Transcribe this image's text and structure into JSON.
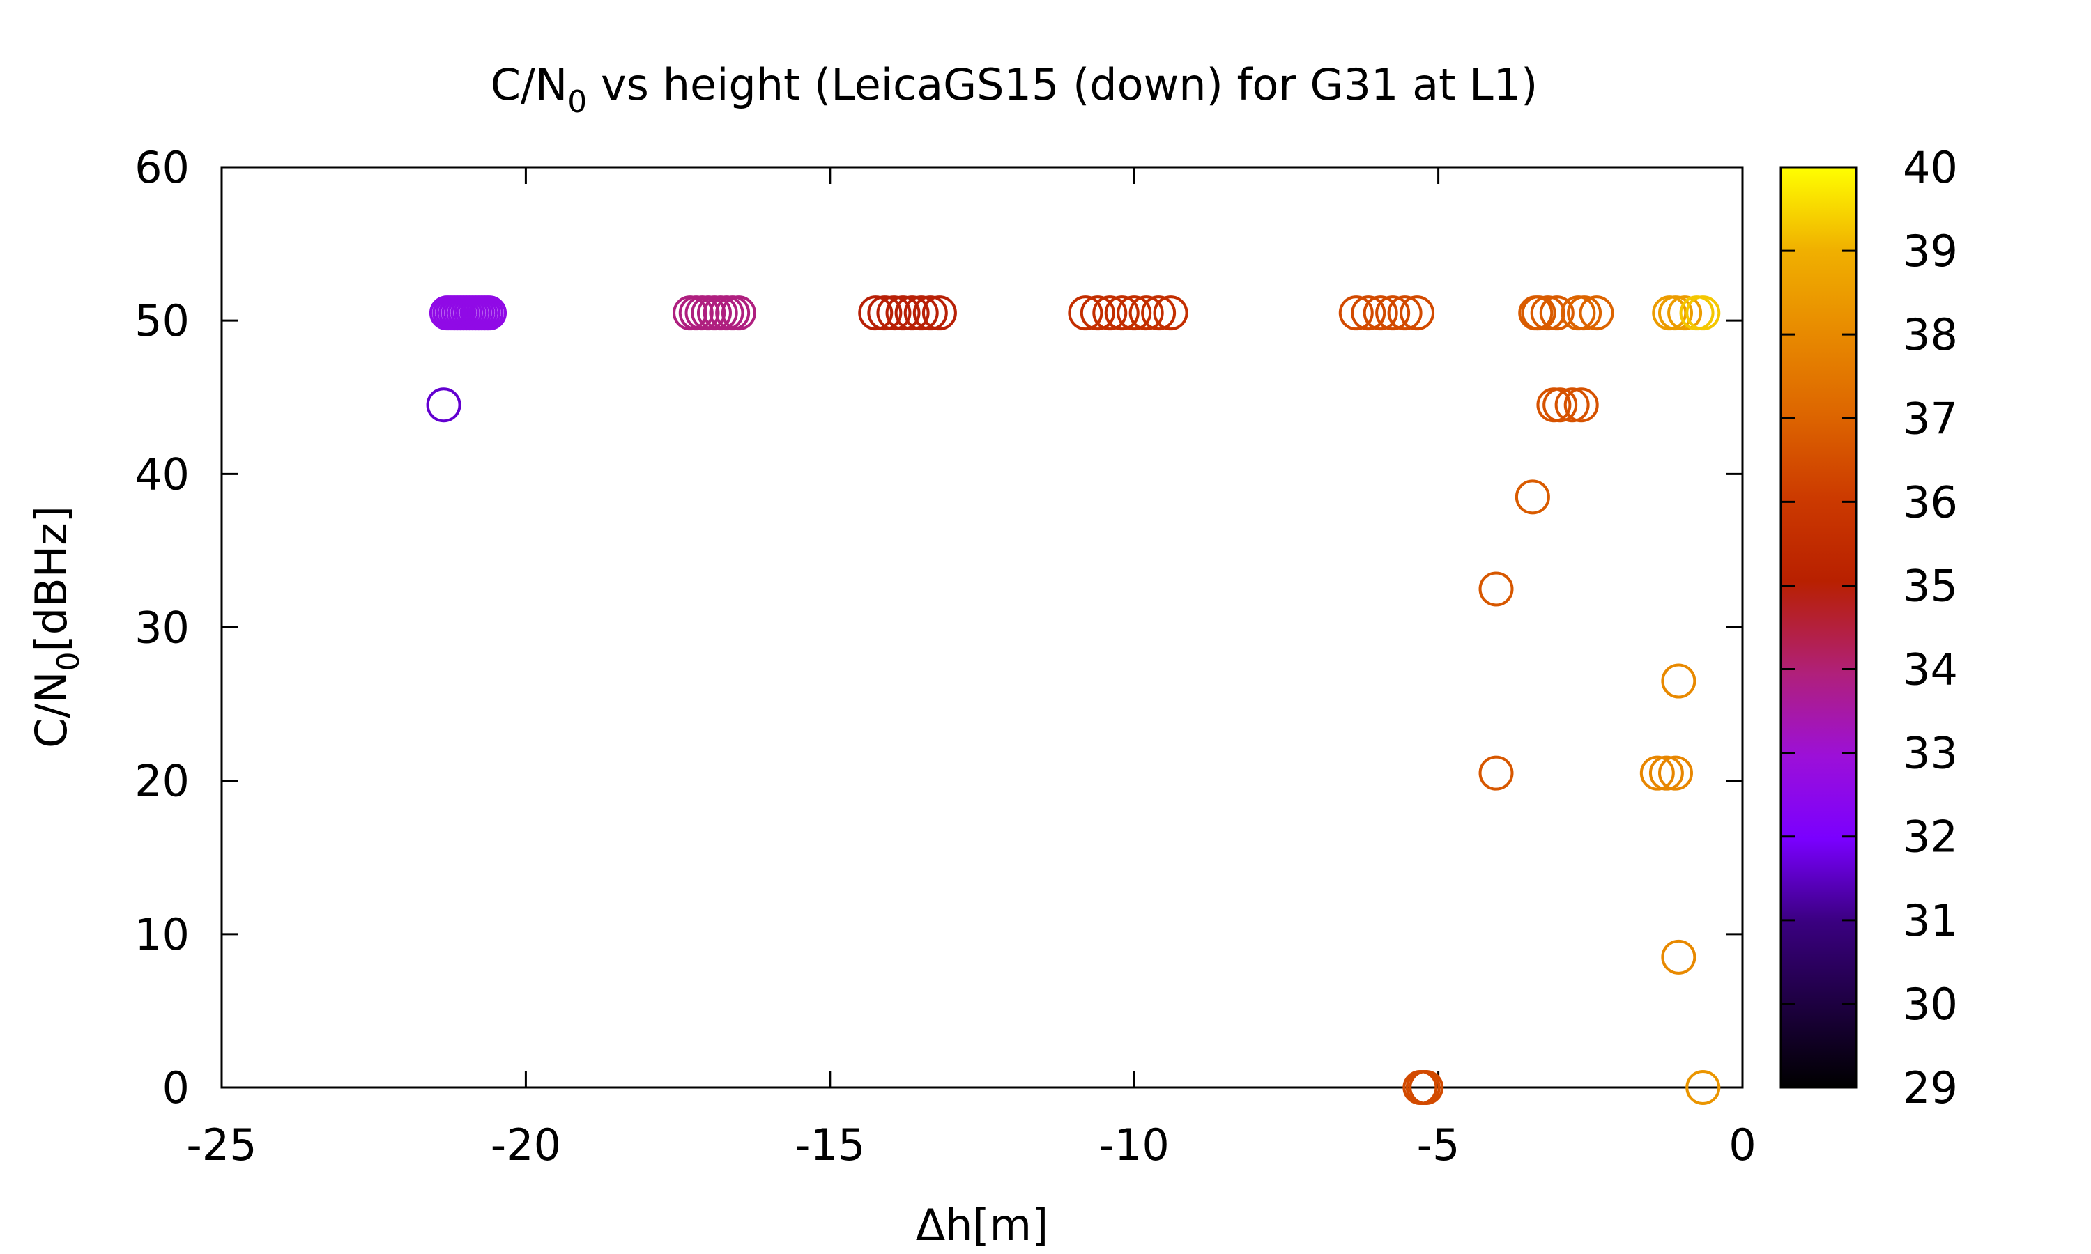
{
  "chart_data": {
    "type": "scatter",
    "title": {
      "prefix": "C/N",
      "sub": "0",
      "suffix": " vs height (LeicaGS15 (down) for G31 at L1)"
    },
    "xlabel": "Δh[m]",
    "ylabel": {
      "prefix": "C/N",
      "sub": "0",
      "suffix": "[dBHz]"
    },
    "xlim": [
      -25,
      0
    ],
    "ylim": [
      0,
      60
    ],
    "xticks": [
      "-25",
      "-20",
      "-15",
      "-10",
      "-5",
      "0"
    ],
    "yticks": [
      "0",
      "10",
      "20",
      "30",
      "40",
      "50",
      "60"
    ],
    "colorbar": {
      "range": [
        29,
        40
      ],
      "ticks": [
        "29",
        "30",
        "31",
        "32",
        "33",
        "34",
        "35",
        "36",
        "37",
        "38",
        "39",
        "40"
      ],
      "palette": "black-purple-red-orange-yellow"
    },
    "marker": "open circle",
    "points": [
      {
        "x": -21.35,
        "y": 44.5,
        "c": 31.6
      },
      {
        "x": -20.6,
        "y": 50.5,
        "c": 32.6
      },
      {
        "x": -20.65,
        "y": 50.5,
        "c": 32.6
      },
      {
        "x": -20.7,
        "y": 50.5,
        "c": 32.6
      },
      {
        "x": -20.75,
        "y": 50.5,
        "c": 32.6
      },
      {
        "x": -20.8,
        "y": 50.5,
        "c": 32.6
      },
      {
        "x": -20.85,
        "y": 50.5,
        "c": 32.6
      },
      {
        "x": -20.9,
        "y": 50.5,
        "c": 32.6
      },
      {
        "x": -20.95,
        "y": 50.5,
        "c": 32.6
      },
      {
        "x": -21.0,
        "y": 50.5,
        "c": 32.6
      },
      {
        "x": -21.05,
        "y": 50.5,
        "c": 32.6
      },
      {
        "x": -21.1,
        "y": 50.5,
        "c": 32.6
      },
      {
        "x": -21.15,
        "y": 50.5,
        "c": 32.6
      },
      {
        "x": -21.2,
        "y": 50.5,
        "c": 32.6
      },
      {
        "x": -21.25,
        "y": 50.5,
        "c": 32.6
      },
      {
        "x": -21.3,
        "y": 50.5,
        "c": 32.6
      },
      {
        "x": -16.5,
        "y": 50.5,
        "c": 33.9
      },
      {
        "x": -16.6,
        "y": 50.5,
        "c": 33.9
      },
      {
        "x": -16.7,
        "y": 50.5,
        "c": 33.9
      },
      {
        "x": -16.8,
        "y": 50.5,
        "c": 33.9
      },
      {
        "x": -16.9,
        "y": 50.5,
        "c": 33.9
      },
      {
        "x": -17.0,
        "y": 50.5,
        "c": 33.9
      },
      {
        "x": -17.1,
        "y": 50.5,
        "c": 33.9
      },
      {
        "x": -17.2,
        "y": 50.5,
        "c": 33.9
      },
      {
        "x": -17.3,
        "y": 50.5,
        "c": 33.9
      },
      {
        "x": -13.2,
        "y": 50.5,
        "c": 35.0
      },
      {
        "x": -13.35,
        "y": 50.5,
        "c": 35.0
      },
      {
        "x": -13.5,
        "y": 50.5,
        "c": 35.0
      },
      {
        "x": -13.65,
        "y": 50.5,
        "c": 35.0
      },
      {
        "x": -13.8,
        "y": 50.5,
        "c": 35.0
      },
      {
        "x": -13.95,
        "y": 50.5,
        "c": 35.0
      },
      {
        "x": -14.1,
        "y": 50.5,
        "c": 35.0
      },
      {
        "x": -14.25,
        "y": 50.5,
        "c": 35.0
      },
      {
        "x": -9.4,
        "y": 50.5,
        "c": 35.6
      },
      {
        "x": -9.6,
        "y": 50.5,
        "c": 35.6
      },
      {
        "x": -9.8,
        "y": 50.5,
        "c": 35.6
      },
      {
        "x": -10.0,
        "y": 50.5,
        "c": 35.6
      },
      {
        "x": -10.2,
        "y": 50.5,
        "c": 35.6
      },
      {
        "x": -10.4,
        "y": 50.5,
        "c": 35.6
      },
      {
        "x": -10.6,
        "y": 50.5,
        "c": 35.6
      },
      {
        "x": -10.8,
        "y": 50.5,
        "c": 35.6
      },
      {
        "x": -5.35,
        "y": 50.5,
        "c": 36.4
      },
      {
        "x": -5.55,
        "y": 50.5,
        "c": 36.4
      },
      {
        "x": -5.75,
        "y": 50.5,
        "c": 36.4
      },
      {
        "x": -5.95,
        "y": 50.5,
        "c": 36.4
      },
      {
        "x": -6.15,
        "y": 50.5,
        "c": 36.4
      },
      {
        "x": -6.35,
        "y": 50.5,
        "c": 36.4
      },
      {
        "x": -5.2,
        "y": 0,
        "c": 36.4
      },
      {
        "x": -5.25,
        "y": 0,
        "c": 36.4
      },
      {
        "x": -5.3,
        "y": 0,
        "c": 36.4
      },
      {
        "x": -3.05,
        "y": 50.5,
        "c": 36.8
      },
      {
        "x": -3.2,
        "y": 50.5,
        "c": 36.8
      },
      {
        "x": -3.35,
        "y": 50.5,
        "c": 36.8
      },
      {
        "x": -3.4,
        "y": 50.5,
        "c": 36.8
      },
      {
        "x": -2.4,
        "y": 50.5,
        "c": 37.0
      },
      {
        "x": -2.6,
        "y": 50.5,
        "c": 37.0
      },
      {
        "x": -2.7,
        "y": 50.5,
        "c": 37.0
      },
      {
        "x": -2.65,
        "y": 44.5,
        "c": 36.6
      },
      {
        "x": -2.8,
        "y": 44.5,
        "c": 36.6
      },
      {
        "x": -3.0,
        "y": 44.5,
        "c": 36.6
      },
      {
        "x": -3.1,
        "y": 44.5,
        "c": 36.6
      },
      {
        "x": -3.45,
        "y": 38.5,
        "c": 36.8
      },
      {
        "x": -4.05,
        "y": 32.5,
        "c": 36.7
      },
      {
        "x": -4.05,
        "y": 20.5,
        "c": 36.7
      },
      {
        "x": -1.05,
        "y": 26.5,
        "c": 38.0
      },
      {
        "x": -1.1,
        "y": 20.5,
        "c": 37.9
      },
      {
        "x": -1.25,
        "y": 20.5,
        "c": 37.9
      },
      {
        "x": -1.4,
        "y": 20.5,
        "c": 37.9
      },
      {
        "x": -1.05,
        "y": 8.5,
        "c": 38.0
      },
      {
        "x": -0.65,
        "y": 0,
        "c": 38.3
      },
      {
        "x": -0.95,
        "y": 50.5,
        "c": 38.5
      },
      {
        "x": -1.1,
        "y": 50.5,
        "c": 38.5
      },
      {
        "x": -1.2,
        "y": 50.5,
        "c": 38.5
      },
      {
        "x": -0.65,
        "y": 50.5,
        "c": 39.3
      },
      {
        "x": -0.75,
        "y": 50.5,
        "c": 39.3
      }
    ]
  }
}
